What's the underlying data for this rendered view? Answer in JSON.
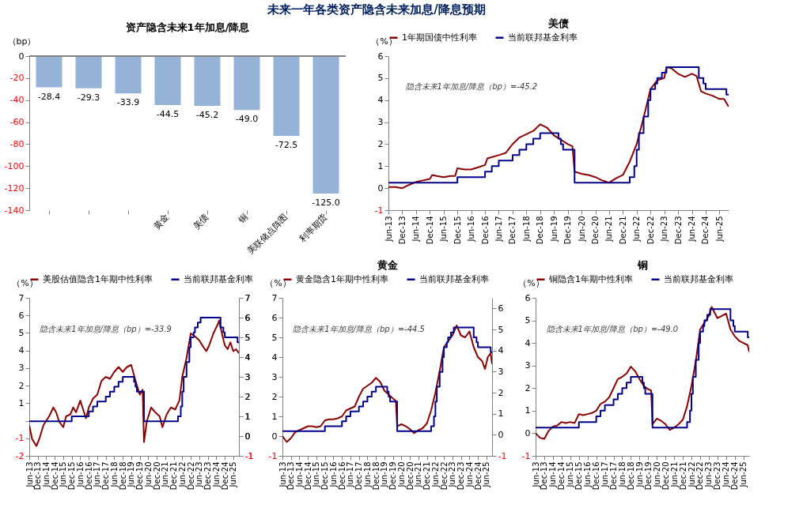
{
  "chart_data": [
    {
      "type": "bar",
      "title": "资产隐含未来1年加息/降息",
      "ylabel": "（bp）",
      "annotations": [
        "未来一年各类资产隐含未来加息/降息预期"
      ],
      "categories": [
        null,
        null,
        null,
        "黄金",
        "美债",
        "铜",
        "美联储点阵图",
        "利率期货"
      ],
      "values": [
        -28.4,
        -29.3,
        -33.9,
        -44.5,
        -45.2,
        -49.0,
        -72.5,
        -125.0
      ],
      "color": "#95b3d7",
      "value_labels": [
        "-28.4",
        "-29.3",
        "-33.9",
        "-44.5",
        "-45.2",
        "-49.0",
        "-72.5",
        "-125.0"
      ],
      "ylim": [
        -140,
        0
      ],
      "yticks": [
        -140,
        -120,
        -100,
        -80,
        -60,
        -40,
        -20,
        0
      ]
    },
    {
      "type": "line",
      "title": "美债",
      "ylabel": "（%）",
      "legend": "top",
      "annotations": [
        "隐含未来1年加息/降息（bp）=-45.2"
      ],
      "xlim": [
        "2013-06",
        "2025-10"
      ],
      "ylim": [
        -1,
        6
      ],
      "yticks": [
        -1,
        0,
        1,
        2,
        3,
        4,
        5,
        6
      ],
      "xticks": [
        {
          "value": "2013-06",
          "label": "Jun-13"
        },
        {
          "value": "2013-12",
          "label": "Dec-13"
        },
        {
          "value": "2014-06",
          "label": "Jun-14"
        },
        {
          "value": "2014-12",
          "label": "Dec-14"
        },
        {
          "value": "2015-06",
          "label": "Jun-15"
        },
        {
          "value": "2015-12",
          "label": "Dec-15"
        },
        {
          "value": "2016-06",
          "label": "Jun-16"
        },
        {
          "value": "2016-12",
          "label": "Dec-16"
        },
        {
          "value": "2017-06",
          "label": "Jun-17"
        },
        {
          "value": "2017-12",
          "label": "Dec-17"
        },
        {
          "value": "2018-06",
          "label": "Jun-18"
        },
        {
          "value": "2018-12",
          "label": "Dec-18"
        },
        {
          "value": "2019-06",
          "label": "Jun-19"
        },
        {
          "value": "2019-12",
          "label": "Dec-19"
        },
        {
          "value": "2020-06",
          "label": "Jun-20"
        },
        {
          "value": "2020-12",
          "label": "Dec-20"
        },
        {
          "value": "2021-06",
          "label": "Jun-21"
        },
        {
          "value": "2021-12",
          "label": "Dec-21"
        },
        {
          "value": "2022-06",
          "label": "Jun-22"
        },
        {
          "value": "2022-12",
          "label": "Dec-22"
        },
        {
          "value": "2023-06",
          "label": "Jun-23"
        },
        {
          "value": "2023-12",
          "label": "Dec-23"
        },
        {
          "value": "2024-06",
          "label": "Jun-24"
        },
        {
          "value": "2024-12",
          "label": "Dec-24"
        },
        {
          "value": "2025-06",
          "label": "Jun-25"
        }
      ],
      "series": [
        {
          "name": "1年期国债中性利率",
          "color": "#8b0000",
          "x": [
            "2013-06",
            "2013-09",
            "2013-12",
            "2014-03",
            "2014-06",
            "2014-09",
            "2014-12",
            "2015-01",
            "2015-03",
            "2015-06",
            "2015-09",
            "2015-11",
            "2015-12",
            "2016-03",
            "2016-06",
            "2016-09",
            "2016-12",
            "2017-01",
            "2017-06",
            "2017-09",
            "2017-12",
            "2018-03",
            "2018-06",
            "2018-09",
            "2018-12",
            "2019-03",
            "2019-06",
            "2019-09",
            "2019-12",
            "2020-02",
            "2020-03",
            "2020-06",
            "2020-09",
            "2020-12",
            "2021-03",
            "2021-06",
            "2021-09",
            "2021-12",
            "2022-03",
            "2022-06",
            "2022-09",
            "2022-12",
            "2023-03",
            "2023-06",
            "2023-07",
            "2023-09",
            "2023-12",
            "2024-03",
            "2024-06",
            "2024-08",
            "2024-10",
            "2024-12",
            "2025-03",
            "2025-06",
            "2025-08",
            "2025-10"
          ],
          "values": [
            0.05,
            0.05,
            0.0,
            0.15,
            0.28,
            0.35,
            0.42,
            0.6,
            0.55,
            0.5,
            0.55,
            0.55,
            0.9,
            0.85,
            0.85,
            0.95,
            1.05,
            1.35,
            1.5,
            1.6,
            2.0,
            2.3,
            2.45,
            2.6,
            2.9,
            2.75,
            2.4,
            2.2,
            2.0,
            1.9,
            0.75,
            0.65,
            0.6,
            0.5,
            0.35,
            0.25,
            0.45,
            0.6,
            1.2,
            2.0,
            3.2,
            4.5,
            4.9,
            5.0,
            5.5,
            5.45,
            5.2,
            5.05,
            5.2,
            5.1,
            4.4,
            4.3,
            4.2,
            4.05,
            4.05,
            3.7
          ]
        },
        {
          "name": "当前联邦基金利率",
          "color": "#00008b",
          "type": "step",
          "x": [
            "2013-06",
            "2015-12",
            "2016-12",
            "2017-03",
            "2017-06",
            "2017-12",
            "2018-03",
            "2018-06",
            "2018-09",
            "2018-12",
            "2019-08",
            "2019-09",
            "2019-10",
            "2020-03",
            "2022-03",
            "2022-05",
            "2022-06",
            "2022-07",
            "2022-09",
            "2022-11",
            "2022-12",
            "2023-02",
            "2023-03",
            "2023-05",
            "2023-07",
            "2024-09",
            "2024-11",
            "2024-12",
            "2025-09",
            "2025-10"
          ],
          "values": [
            0.25,
            0.5,
            0.75,
            1.0,
            1.25,
            1.5,
            1.75,
            2.0,
            2.25,
            2.5,
            2.25,
            2.0,
            1.75,
            0.25,
            0.5,
            1.0,
            1.75,
            2.5,
            3.25,
            4.0,
            4.5,
            4.75,
            5.0,
            5.25,
            5.5,
            5.0,
            4.75,
            4.5,
            4.25,
            4.25
          ]
        }
      ]
    },
    {
      "type": "line",
      "ylabel": "（%）",
      "legend": "top",
      "annotations": [
        "隐含未来1年加息/降息（bp）=-33.9"
      ],
      "xlim": [
        "2013-06",
        "2025-10"
      ],
      "ylim": [
        -2,
        7
      ],
      "yticks": [
        -2,
        -1,
        {
          "value": 0,
          "label": null
        },
        1,
        2,
        3,
        4,
        5,
        6,
        7
      ],
      "y2lim": [
        -1,
        7
      ],
      "y2ticks": [
        -1,
        0,
        1,
        2,
        3,
        4,
        5,
        6,
        7
      ],
      "xticks": [
        {
          "value": "2013-06",
          "label": "Jun-13"
        },
        {
          "value": "2013-12",
          "label": "Dec-13"
        },
        {
          "value": "2014-06",
          "label": "Jun-14"
        },
        {
          "value": "2014-12",
          "label": "Dec-14"
        },
        {
          "value": "2015-06",
          "label": "Jun-15"
        },
        {
          "value": "2015-12",
          "label": "Dec-15"
        },
        {
          "value": "2016-06",
          "label": "Jun-16"
        },
        {
          "value": "2016-12",
          "label": "Dec-16"
        },
        {
          "value": "2017-06",
          "label": "Jun-17"
        },
        {
          "value": "2017-12",
          "label": "Dec-17"
        },
        {
          "value": "2018-06",
          "label": "Jun-18"
        },
        {
          "value": "2018-12",
          "label": "Dec-18"
        },
        {
          "value": "2019-06",
          "label": "Jun-19"
        },
        {
          "value": "2019-12",
          "label": "Dec-19"
        },
        {
          "value": "2020-06",
          "label": "Jun-20"
        },
        {
          "value": "2020-12",
          "label": "Dec-20"
        },
        {
          "value": "2021-06",
          "label": "Jun-21"
        },
        {
          "value": "2021-12",
          "label": "Dec-21"
        },
        {
          "value": "2022-06",
          "label": "Jun-22"
        },
        {
          "value": "2022-12",
          "label": "Dec-22"
        },
        {
          "value": "2023-06",
          "label": "Jun-23"
        },
        {
          "value": "2023-12",
          "label": "Dec-23"
        },
        {
          "value": "2024-06",
          "label": "Jun-24"
        },
        {
          "value": "2024-12",
          "label": "Dec-24"
        },
        {
          "value": "2025-06",
          "label": "Jun-25"
        }
      ],
      "series": [
        {
          "name": "美股估值隐含1年期中性利率",
          "color": "#8b0000",
          "axis": "y2",
          "x": [
            "2013-06",
            "2013-08",
            "2013-11",
            "2014-01",
            "2014-04",
            "2014-08",
            "2014-11",
            "2015-01",
            "2015-03",
            "2015-06",
            "2015-08",
            "2015-11",
            "2016-01",
            "2016-03",
            "2016-06",
            "2016-08",
            "2016-10",
            "2016-12",
            "2017-03",
            "2017-06",
            "2017-09",
            "2017-12",
            "2018-03",
            "2018-06",
            "2018-09",
            "2018-12",
            "2019-03",
            "2019-06",
            "2019-09",
            "2019-12",
            "2020-02",
            "2020-03",
            "2020-05",
            "2020-08",
            "2020-11",
            "2021-02",
            "2021-04",
            "2021-07",
            "2021-10",
            "2022-01",
            "2022-04",
            "2022-06",
            "2022-09",
            "2022-12",
            "2023-03",
            "2023-06",
            "2023-09",
            "2023-11",
            "2024-01",
            "2024-04",
            "2024-07",
            "2024-08",
            "2024-10",
            "2024-12",
            "2025-02",
            "2025-04",
            "2025-06",
            "2025-08",
            "2025-10"
          ],
          "values": [
            0.55,
            -0.15,
            -0.5,
            -0.15,
            0.55,
            1.0,
            1.45,
            1.2,
            0.75,
            0.45,
            1.0,
            1.1,
            1.45,
            1.2,
            1.8,
            1.35,
            0.9,
            1.45,
            1.9,
            2.1,
            2.8,
            3.0,
            2.9,
            3.25,
            3.5,
            3.25,
            3.5,
            3.6,
            2.8,
            2.1,
            2.35,
            -0.3,
            0.75,
            1.45,
            1.2,
            1.0,
            0.45,
            1.1,
            1.45,
            1.35,
            1.8,
            3.0,
            3.95,
            5.2,
            5.05,
            4.85,
            4.5,
            4.3,
            4.6,
            5.2,
            5.65,
            5.85,
            5.2,
            4.6,
            4.4,
            4.75,
            4.3,
            4.4,
            4.2
          ]
        },
        {
          "name": "当前联邦基金利率",
          "color": "#00008b",
          "type": "step",
          "axis": "y2",
          "x": [
            "2013-06",
            "2015-12",
            "2016-12",
            "2017-03",
            "2017-06",
            "2017-12",
            "2018-03",
            "2018-06",
            "2018-09",
            "2018-12",
            "2019-08",
            "2019-09",
            "2019-10",
            "2020-03",
            "2022-03",
            "2022-05",
            "2022-06",
            "2022-07",
            "2022-09",
            "2022-11",
            "2022-12",
            "2023-02",
            "2023-03",
            "2023-05",
            "2023-07",
            "2024-09",
            "2024-11",
            "2024-12",
            "2025-09",
            "2025-10"
          ],
          "values": [
            0.75,
            1.0,
            1.25,
            1.5,
            1.75,
            2.0,
            2.25,
            2.5,
            2.75,
            3.0,
            2.75,
            2.5,
            2.25,
            0.75,
            1.0,
            1.5,
            2.25,
            3.0,
            3.75,
            4.5,
            5.0,
            5.25,
            5.5,
            5.75,
            6.0,
            5.5,
            5.25,
            5.0,
            4.75,
            4.75
          ]
        }
      ]
    },
    {
      "type": "line",
      "title": "黄金",
      "ylabel": "（%）",
      "legend": "top",
      "annotations": [
        "隐含未来1年加息/降息（bp）=-44.5"
      ],
      "xlim": [
        "2013-06",
        "2025-10"
      ],
      "ylim": [
        -1,
        7
      ],
      "yticks": [
        -1,
        0,
        1,
        2,
        3,
        4,
        5,
        6,
        7
      ],
      "y2lim": [
        -1,
        6.5
      ],
      "y2ticks": [
        -1,
        0,
        1,
        2,
        3,
        4,
        5,
        6
      ],
      "xticks": [
        {
          "value": "2013-06",
          "label": "Jun-13"
        },
        {
          "value": "2013-12",
          "label": "Dec-13"
        },
        {
          "value": "2014-06",
          "label": "Jun-14"
        },
        {
          "value": "2014-12",
          "label": "Dec-14"
        },
        {
          "value": "2015-06",
          "label": "Jun-15"
        },
        {
          "value": "2015-12",
          "label": "Dec-15"
        },
        {
          "value": "2016-06",
          "label": "Jun-16"
        },
        {
          "value": "2016-12",
          "label": "Dec-16"
        },
        {
          "value": "2017-06",
          "label": "Jun-17"
        },
        {
          "value": "2017-12",
          "label": "Dec-17"
        },
        {
          "value": "2018-06",
          "label": "Jun-18"
        },
        {
          "value": "2018-12",
          "label": "Dec-18"
        },
        {
          "value": "2019-06",
          "label": "Jun-19"
        },
        {
          "value": "2019-12",
          "label": "Dec-19"
        },
        {
          "value": "2020-06",
          "label": "Jun-20"
        },
        {
          "value": "2020-12",
          "label": "Dec-20"
        },
        {
          "value": "2021-06",
          "label": "Jun-21"
        },
        {
          "value": "2021-12",
          "label": "Dec-21"
        },
        {
          "value": "2022-06",
          "label": "Jun-22"
        },
        {
          "value": "2022-12",
          "label": "Dec-22"
        },
        {
          "value": "2023-06",
          "label": "Jun-23"
        },
        {
          "value": "2023-12",
          "label": "Dec-23"
        },
        {
          "value": "2024-06",
          "label": "Jun-24"
        },
        {
          "value": "2024-12",
          "label": "Dec-24"
        },
        {
          "value": "2025-06",
          "label": "Jun-25"
        }
      ],
      "series": [
        {
          "name": "黄金隐含1年期中性利率",
          "color": "#8b0000",
          "x": [
            "2013-06",
            "2013-09",
            "2013-12",
            "2014-03",
            "2014-06",
            "2014-09",
            "2014-12",
            "2015-03",
            "2015-06",
            "2015-09",
            "2015-12",
            "2016-03",
            "2016-06",
            "2016-09",
            "2016-12",
            "2017-03",
            "2017-06",
            "2017-09",
            "2017-12",
            "2018-03",
            "2018-06",
            "2018-09",
            "2018-12",
            "2019-03",
            "2019-06",
            "2019-09",
            "2019-12",
            "2020-02",
            "2020-03",
            "2020-06",
            "2020-09",
            "2020-12",
            "2021-03",
            "2021-06",
            "2021-09",
            "2021-12",
            "2022-03",
            "2022-06",
            "2022-09",
            "2022-12",
            "2023-03",
            "2023-06",
            "2023-09",
            "2023-12",
            "2024-03",
            "2024-06",
            "2024-09",
            "2024-12",
            "2025-03",
            "2025-05",
            "2025-07",
            "2025-09",
            "2025-10"
          ],
          "values": [
            0.0,
            -0.3,
            -0.1,
            0.2,
            0.3,
            0.4,
            0.5,
            0.5,
            0.45,
            0.5,
            0.8,
            0.85,
            0.85,
            0.9,
            1.0,
            1.3,
            1.4,
            1.5,
            2.0,
            2.4,
            2.55,
            2.7,
            2.95,
            2.75,
            2.3,
            2.1,
            1.9,
            1.8,
            0.5,
            0.6,
            0.5,
            0.35,
            0.15,
            0.3,
            0.4,
            0.65,
            1.3,
            2.2,
            3.3,
            4.5,
            4.8,
            5.1,
            5.6,
            5.1,
            5.0,
            5.3,
            4.5,
            4.0,
            3.8,
            3.4,
            4.0,
            4.2,
            3.65
          ]
        },
        {
          "name": "当前联邦基金利率",
          "color": "#00008b",
          "type": "step",
          "x": [
            "2013-06",
            "2015-12",
            "2016-12",
            "2017-03",
            "2017-06",
            "2017-12",
            "2018-03",
            "2018-06",
            "2018-09",
            "2018-12",
            "2019-08",
            "2019-09",
            "2019-10",
            "2020-03",
            "2022-03",
            "2022-05",
            "2022-06",
            "2022-07",
            "2022-09",
            "2022-11",
            "2022-12",
            "2023-02",
            "2023-03",
            "2023-05",
            "2023-07",
            "2024-09",
            "2024-11",
            "2024-12",
            "2025-09",
            "2025-10"
          ],
          "values": [
            0.25,
            0.5,
            0.75,
            1.0,
            1.25,
            1.5,
            1.75,
            2.0,
            2.25,
            2.5,
            2.25,
            2.0,
            1.75,
            0.25,
            0.5,
            1.0,
            1.75,
            2.5,
            3.25,
            4.0,
            4.5,
            4.75,
            5.0,
            5.25,
            5.5,
            5.0,
            4.75,
            4.5,
            4.25,
            4.25
          ]
        }
      ]
    },
    {
      "type": "line",
      "title": "铜",
      "ylabel": "（%）",
      "legend": "top",
      "annotations": [
        "隐含未来1年加息/降息（bp）=-49.0"
      ],
      "xlim": [
        "2013-06",
        "2025-10"
      ],
      "ylim": [
        -1,
        6
      ],
      "yticks": [
        -1,
        0,
        1,
        2,
        3,
        4,
        5,
        6
      ],
      "xticks": [
        {
          "value": "2013-06",
          "label": "Jun-13"
        },
        {
          "value": "2013-12",
          "label": "Dec-13"
        },
        {
          "value": "2014-06",
          "label": "Jun-14"
        },
        {
          "value": "2014-12",
          "label": "Dec-14"
        },
        {
          "value": "2015-06",
          "label": "Jun-15"
        },
        {
          "value": "2015-12",
          "label": "Dec-15"
        },
        {
          "value": "2016-06",
          "label": "Jun-16"
        },
        {
          "value": "2016-12",
          "label": "Dec-16"
        },
        {
          "value": "2017-06",
          "label": "Jun-17"
        },
        {
          "value": "2017-12",
          "label": "Dec-17"
        },
        {
          "value": "2018-06",
          "label": "Jun-18"
        },
        {
          "value": "2018-12",
          "label": "Dec-18"
        },
        {
          "value": "2019-06",
          "label": "Jun-19"
        },
        {
          "value": "2019-12",
          "label": "Dec-19"
        },
        {
          "value": "2020-06",
          "label": "Jun-20"
        },
        {
          "value": "2020-12",
          "label": "Dec-20"
        },
        {
          "value": "2021-06",
          "label": "Jun-21"
        },
        {
          "value": "2021-12",
          "label": "Dec-21"
        },
        {
          "value": "2022-06",
          "label": "Jun-22"
        },
        {
          "value": "2022-12",
          "label": "Dec-22"
        },
        {
          "value": "2023-06",
          "label": "Jun-23"
        },
        {
          "value": "2023-12",
          "label": "Dec-23"
        },
        {
          "value": "2024-06",
          "label": "Jun-24"
        },
        {
          "value": "2024-12",
          "label": "Dec-24"
        },
        {
          "value": "2025-06",
          "label": "Jun-25"
        }
      ],
      "series": [
        {
          "name": "铜隐含1年期中性利率",
          "color": "#8b0000",
          "x": [
            "2013-06",
            "2013-09",
            "2013-12",
            "2014-03",
            "2014-06",
            "2014-09",
            "2014-12",
            "2015-03",
            "2015-06",
            "2015-09",
            "2015-12",
            "2016-03",
            "2016-06",
            "2016-09",
            "2016-12",
            "2017-03",
            "2017-06",
            "2017-09",
            "2017-12",
            "2018-03",
            "2018-06",
            "2018-09",
            "2018-12",
            "2019-03",
            "2019-06",
            "2019-09",
            "2019-12",
            "2020-02",
            "2020-03",
            "2020-06",
            "2020-09",
            "2020-12",
            "2021-03",
            "2021-06",
            "2021-09",
            "2021-12",
            "2022-03",
            "2022-06",
            "2022-09",
            "2022-12",
            "2023-03",
            "2023-06",
            "2023-08",
            "2023-12",
            "2024-03",
            "2024-06",
            "2024-09",
            "2024-12",
            "2025-03",
            "2025-06",
            "2025-09",
            "2025-10"
          ],
          "values": [
            0.0,
            -0.2,
            -0.25,
            0.1,
            0.3,
            0.35,
            0.5,
            0.45,
            0.5,
            0.45,
            0.85,
            0.8,
            0.85,
            0.9,
            1.0,
            1.3,
            1.4,
            1.6,
            2.0,
            2.4,
            2.5,
            2.65,
            2.95,
            2.75,
            2.4,
            2.1,
            1.95,
            1.9,
            0.4,
            0.65,
            0.55,
            0.4,
            0.15,
            0.25,
            0.4,
            0.6,
            1.2,
            2.1,
            3.2,
            4.6,
            4.9,
            5.2,
            5.6,
            5.1,
            5.2,
            5.3,
            4.6,
            4.3,
            4.1,
            4.0,
            3.9,
            3.6
          ]
        },
        {
          "name": "当前联邦基金利率",
          "color": "#00008b",
          "type": "step",
          "x": [
            "2013-06",
            "2015-12",
            "2016-12",
            "2017-03",
            "2017-06",
            "2017-12",
            "2018-03",
            "2018-06",
            "2018-09",
            "2018-12",
            "2019-08",
            "2019-09",
            "2019-10",
            "2020-03",
            "2022-03",
            "2022-05",
            "2022-06",
            "2022-07",
            "2022-09",
            "2022-11",
            "2022-12",
            "2023-02",
            "2023-03",
            "2023-05",
            "2023-07",
            "2024-09",
            "2024-11",
            "2024-12",
            "2025-09",
            "2025-10"
          ],
          "values": [
            0.25,
            0.5,
            0.75,
            1.0,
            1.25,
            1.5,
            1.75,
            2.0,
            2.25,
            2.5,
            2.25,
            2.0,
            1.75,
            0.25,
            0.5,
            1.0,
            1.75,
            2.5,
            3.25,
            4.0,
            4.5,
            4.75,
            5.0,
            5.25,
            5.5,
            5.0,
            4.75,
            4.5,
            4.25,
            4.25
          ]
        }
      ]
    }
  ]
}
